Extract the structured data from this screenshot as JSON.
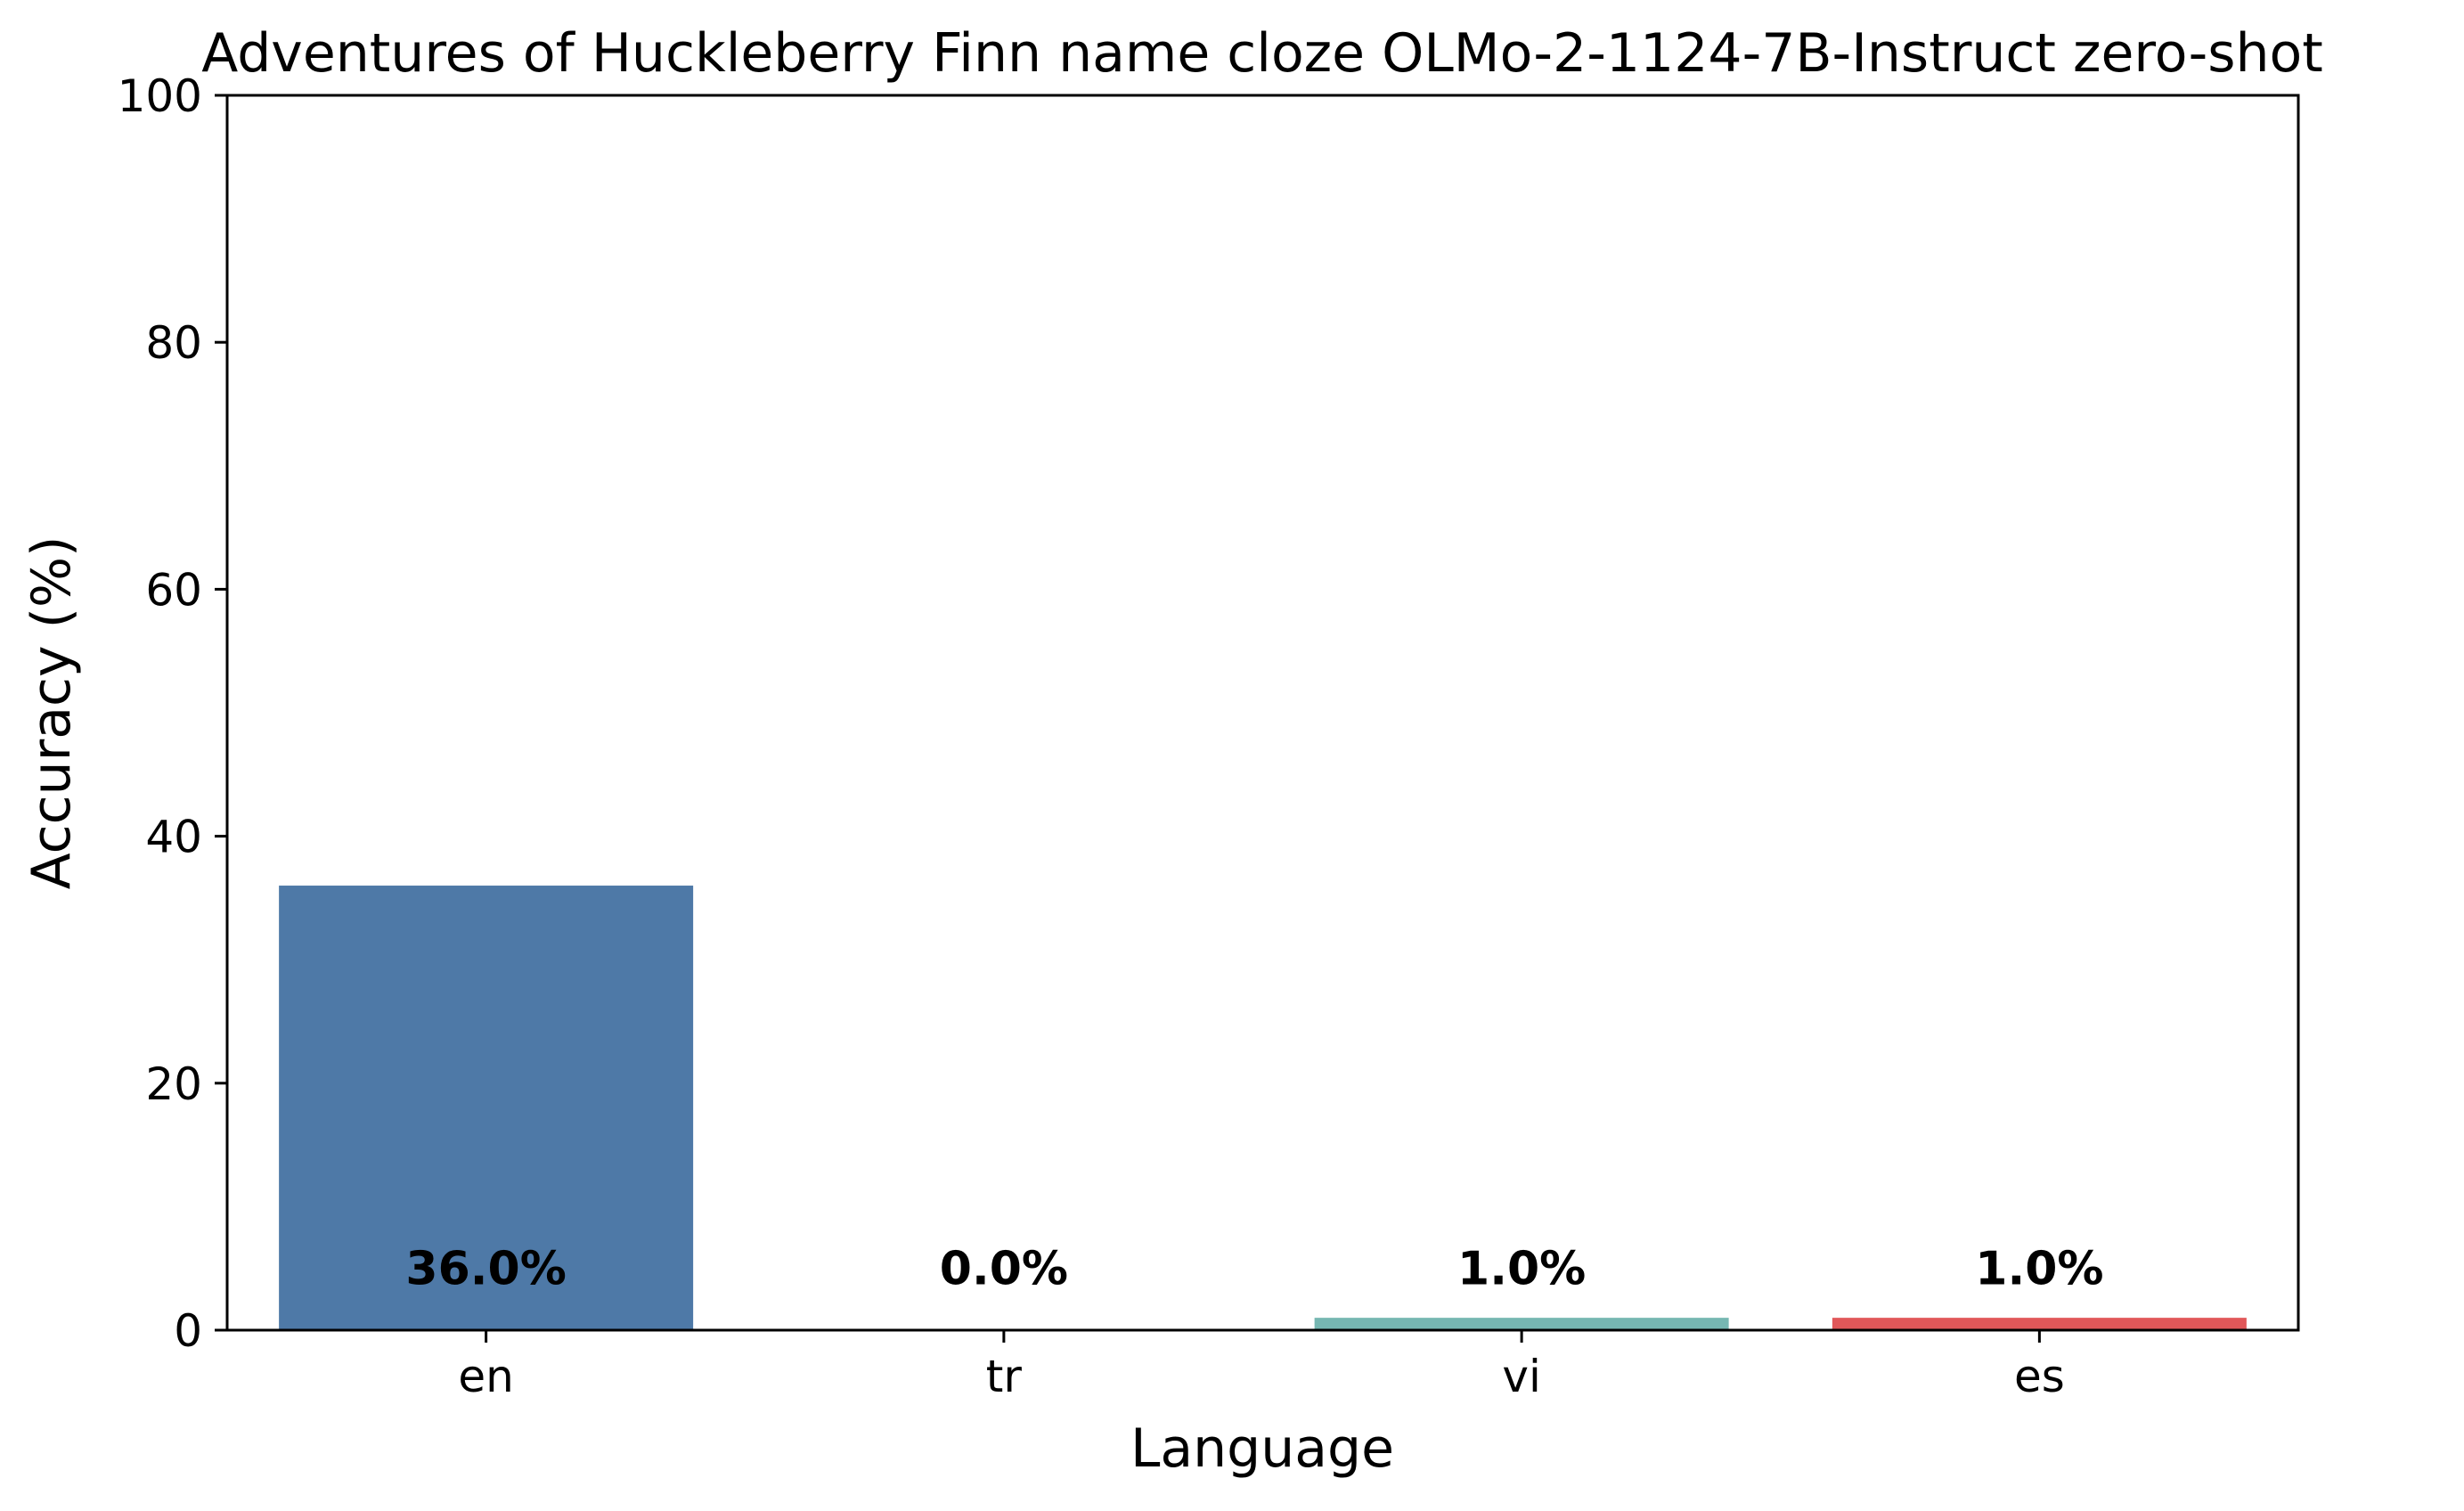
{
  "chart_data": {
    "type": "bar",
    "title": "Adventures of Huckleberry Finn name cloze OLMo-2-1124-7B-Instruct zero-shot",
    "xlabel": "Language",
    "ylabel": "Accuracy (%)",
    "categories": [
      "en",
      "tr",
      "vi",
      "es"
    ],
    "values": [
      36.0,
      0.0,
      1.0,
      1.0
    ],
    "data_labels": [
      "36.0%",
      "0.0%",
      "1.0%",
      "1.0%"
    ],
    "colors": [
      "#4e79a7",
      "#f28e2b",
      "#76b7b2",
      "#e15759"
    ],
    "ylim": [
      0,
      100
    ],
    "yticks": [
      0,
      20,
      40,
      60,
      80,
      100
    ],
    "grid": false,
    "legend": "none"
  }
}
